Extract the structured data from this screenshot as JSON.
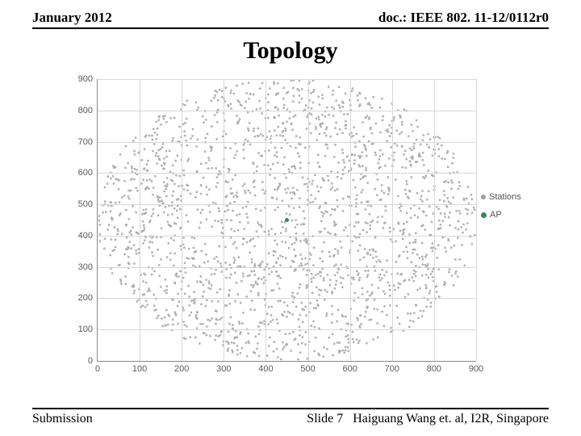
{
  "header": {
    "left": "January 2012",
    "right": "doc.: IEEE 802. 11-12/0112r0"
  },
  "title": "Topology",
  "footer": {
    "left": "Submission",
    "slide": "Slide 7",
    "author": "Haiguang Wang et. al, I2R, Singapore"
  },
  "chart": {
    "type": "scatter",
    "xlim": [
      0,
      900
    ],
    "ylim": [
      0,
      900
    ],
    "xtick_step": 100,
    "ytick_step": 100,
    "xticks": [
      0,
      100,
      200,
      300,
      400,
      500,
      600,
      700,
      800,
      900
    ],
    "yticks": [
      0,
      100,
      200,
      300,
      400,
      500,
      600,
      700,
      800,
      900
    ],
    "grid_color": "#d8d8d8",
    "axis_color": "#888888",
    "background_color": "#ffffff",
    "tick_fontsize": 11,
    "tick_color": "#595959",
    "series": [
      {
        "name": "Stations",
        "marker": "circle",
        "marker_size": 2.2,
        "marker_fill": "#c8c8c8",
        "marker_stroke": "#8a8a8a",
        "marker_stroke_width": 0.5,
        "n_points": 2000,
        "distribution": "uniform-disc",
        "center": [
          450,
          450
        ],
        "radius": 450
      },
      {
        "name": "AP",
        "marker": "circle",
        "marker_size": 5,
        "marker_fill": "#2e8b57",
        "marker_stroke": "#2e8b57",
        "marker_stroke_width": 0,
        "points": [
          [
            450,
            450
          ]
        ]
      }
    ],
    "legend": {
      "position": "right-middle",
      "items": [
        {
          "label": "Stations",
          "color": "#9aa0a6",
          "size": 6
        },
        {
          "label": "AP",
          "color": "#2e8b57",
          "size": 7
        }
      ]
    }
  }
}
